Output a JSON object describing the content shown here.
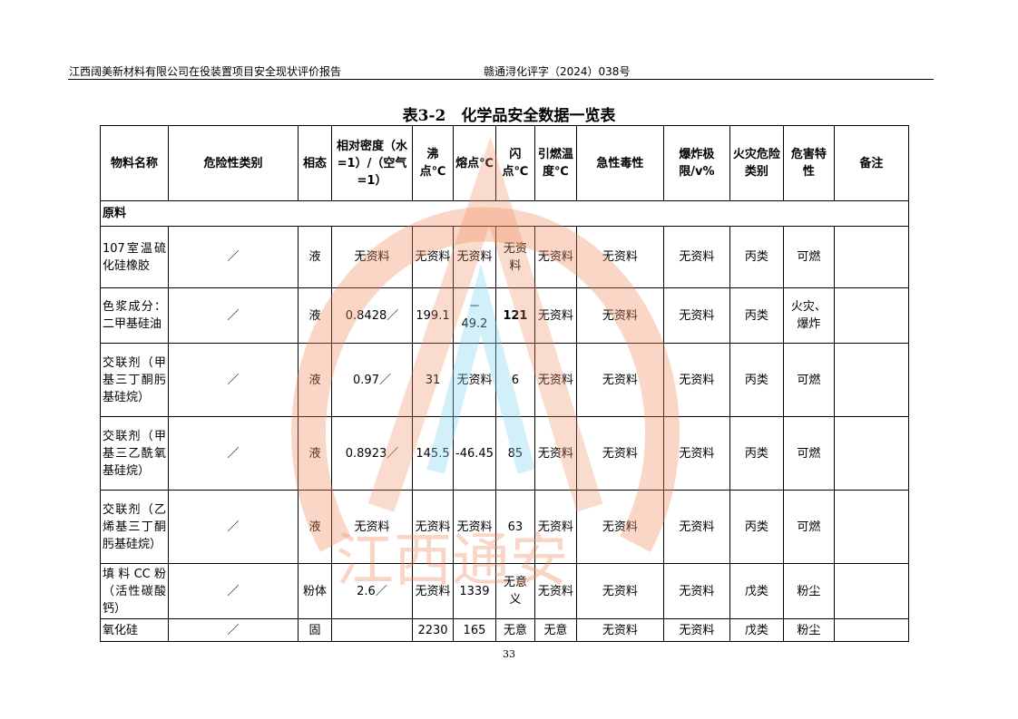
{
  "header": {
    "left": "江西阔美新材料有限公司在役装置项目安全现状评价报告",
    "right": "赣通浔化评字（2024）038号"
  },
  "title": "表3-2　化学品安全数据一览表",
  "columns": [
    "物料名称",
    "危险性类别",
    "相态",
    "相对密度（水=1）/（空气=1）",
    "沸点℃",
    "熔点℃",
    "闪点℃",
    "引燃温度℃",
    "急性毒性",
    "爆炸极限/v%",
    "火灾危险类别",
    "危害特性",
    "备注"
  ],
  "section": "原料",
  "rows": [
    [
      "107室温硫化硅橡胶",
      "／",
      "液",
      "无资料",
      "无资料",
      "无资料",
      "无资料",
      "无资料",
      "无资料",
      "无资料",
      "丙类",
      "可燃",
      ""
    ],
    [
      "色浆成分：二甲基硅油",
      "／",
      "液",
      "0.8428／",
      "199.1",
      "－49.2",
      "121",
      "无资料",
      "无资料",
      "无资料",
      "丙类",
      "火灾、爆炸",
      ""
    ],
    [
      "交联剂（甲基三丁酮肟基硅烷）",
      "／",
      "液",
      "0.97／",
      "31",
      "无资料",
      "6",
      "无资料",
      "无资料",
      "无资料",
      "丙类",
      "可燃",
      ""
    ],
    [
      "交联剂（甲基三乙酰氧基硅烷）",
      "／",
      "液",
      "0.8923／",
      "145.5",
      "-46.45",
      "85",
      "无资料",
      "无资料",
      "无资料",
      "丙类",
      "可燃",
      ""
    ],
    [
      "交联剂（乙烯基三丁酮肟基硅烷）",
      "／",
      "液",
      "无资料",
      "无资料",
      "无资料",
      "63",
      "无资料",
      "无资料",
      "无资料",
      "丙类",
      "可燃",
      ""
    ],
    [
      "填料CC粉（活性碳酸钙）",
      "／",
      "粉体",
      "2.6／",
      "无资料",
      "1339",
      "无意义",
      "无资料",
      "无资料",
      "无资料",
      "戊类",
      "粉尘",
      ""
    ],
    [
      "氧化硅",
      "／",
      "固",
      "",
      "2230",
      "165",
      "无意",
      "无意",
      "无资料",
      "无资料",
      "戊类",
      "粉尘",
      ""
    ]
  ],
  "page_number": "33",
  "watermark": {
    "text": "江西通安",
    "color": "#f08a5d"
  }
}
